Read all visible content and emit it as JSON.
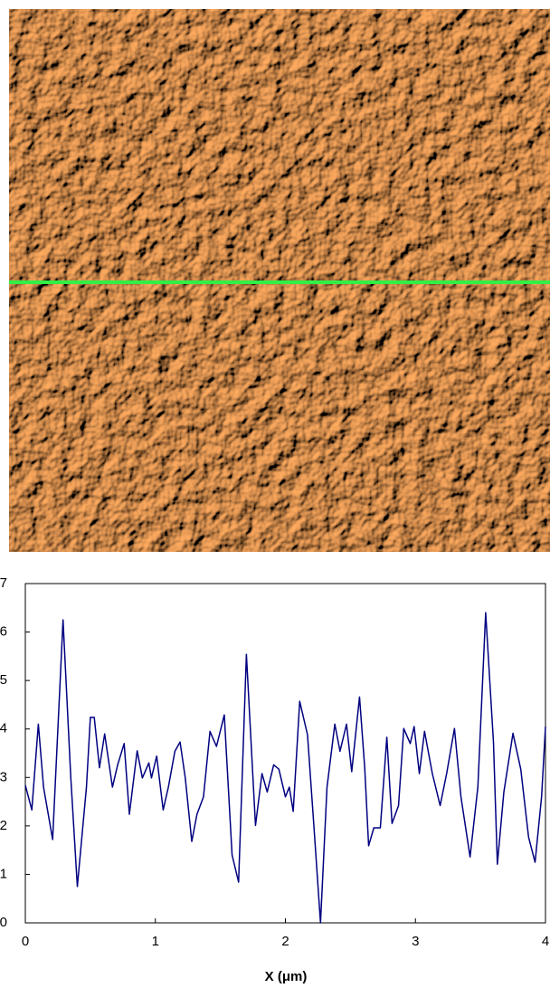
{
  "chart_data": {
    "type": "line",
    "xlabel": "X (μm)",
    "color": "#000080",
    "x": [
      0,
      0.05,
      0.1,
      0.14,
      0.21,
      0.29,
      0.35,
      0.4,
      0.47,
      0.5,
      0.53,
      0.57,
      0.61,
      0.67,
      0.71,
      0.76,
      0.8,
      0.86,
      0.9,
      0.95,
      0.97,
      1.01,
      1.06,
      1.1,
      1.15,
      1.19,
      1.23,
      1.28,
      1.32,
      1.37,
      1.42,
      1.47,
      1.53,
      1.59,
      1.64,
      1.7,
      1.77,
      1.82,
      1.86,
      1.91,
      1.95,
      2.0,
      2.03,
      2.06,
      2.11,
      2.17,
      2.22,
      2.27,
      2.32,
      2.38,
      2.42,
      2.47,
      2.51,
      2.57,
      2.61,
      2.64,
      2.68,
      2.73,
      2.78,
      2.82,
      2.87,
      2.91,
      2.96,
      2.99,
      3.03,
      3.07,
      3.13,
      3.19,
      3.24,
      3.3,
      3.35,
      3.42,
      3.48,
      3.54,
      3.6,
      3.63,
      3.68,
      3.75,
      3.81,
      3.87,
      3.92,
      3.97,
      4.0
    ],
    "values": [
      2.84,
      2.33,
      4.1,
      2.8,
      1.72,
      6.25,
      2.98,
      0.75,
      2.8,
      4.24,
      4.24,
      3.2,
      3.9,
      2.8,
      3.26,
      3.7,
      2.24,
      3.55,
      2.99,
      3.3,
      2.99,
      3.44,
      2.33,
      2.8,
      3.54,
      3.73,
      2.99,
      1.68,
      2.24,
      2.6,
      3.95,
      3.64,
      4.29,
      1.4,
      0.84,
      5.54,
      2.01,
      3.08,
      2.7,
      3.26,
      3.17,
      2.6,
      2.8,
      2.3,
      4.57,
      3.88,
      1.96,
      0,
      2.8,
      4.1,
      3.54,
      4.1,
      3.12,
      4.66,
      3.2,
      1.59,
      1.96,
      1.96,
      3.83,
      2.05,
      2.42,
      4.01,
      3.7,
      4.05,
      3.08,
      3.95,
      3.08,
      2.42,
      3.08,
      4.01,
      2.6,
      1.36,
      2.8,
      6.4,
      3.73,
      1.21,
      2.7,
      3.91,
      3.17,
      1.77,
      1.25,
      2.6,
      4.05
    ],
    "xlim": [
      0,
      4
    ],
    "ylim": [
      0,
      7
    ],
    "xticks": [
      0,
      1,
      2,
      3,
      4
    ],
    "yticks": [
      0,
      1,
      2,
      3,
      4,
      5,
      6,
      7
    ]
  }
}
